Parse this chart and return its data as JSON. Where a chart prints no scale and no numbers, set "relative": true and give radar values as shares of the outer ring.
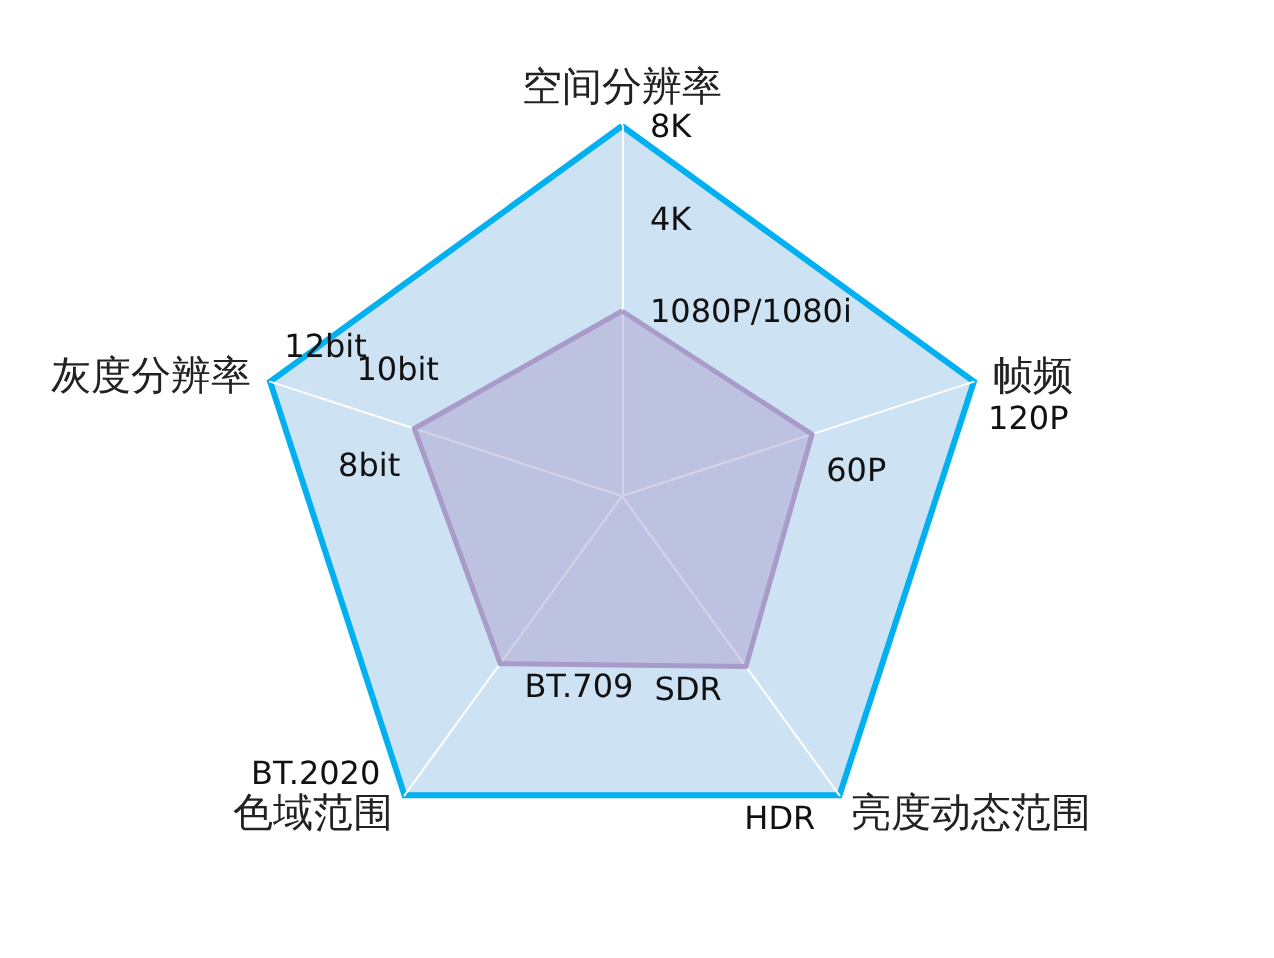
{
  "chart_data": {
    "type": "radar",
    "relative": true,
    "categories": [
      "空间分辨率",
      "帧频",
      "亮度动态范围",
      "色域范围",
      "灰度分辨率"
    ],
    "series": [
      {
        "color": "#a99bc9",
        "values": [
          0.5,
          0.54,
          0.57,
          0.56,
          0.59
        ]
      }
    ],
    "annotations": [
      {
        "text": "8K",
        "x": "空间分辨率"
      },
      {
        "text": "4K",
        "x": "空间分辨率"
      },
      {
        "text": "1080P/1080i",
        "x": "空间分辨率"
      },
      {
        "text": "120P",
        "x": "帧频"
      },
      {
        "text": "60P",
        "x": "帧频"
      },
      {
        "text": "HDR",
        "x": "亮度动态范围"
      },
      {
        "text": "SDR",
        "x": "亮度动态范围"
      },
      {
        "text": "BT.2020",
        "x": "色域范围"
      },
      {
        "text": "BT.709",
        "x": "色域范围"
      },
      {
        "text": "12bit",
        "x": "灰度分辨率"
      },
      {
        "text": "10bit",
        "x": "灰度分辨率"
      },
      {
        "text": "8bit",
        "x": "灰度分辨率"
      }
    ]
  }
}
